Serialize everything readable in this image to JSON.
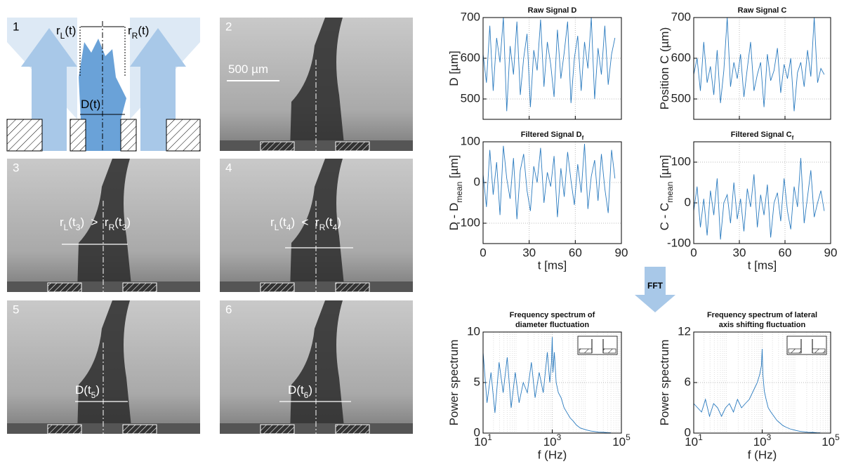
{
  "panels": [
    {
      "number": "1",
      "labels": [
        {
          "parts": [
            {
              "text": "r"
            },
            {
              "sub": "L"
            },
            {
              "text": "(t)"
            }
          ]
        },
        {
          "parts": [
            {
              "text": "r"
            },
            {
              "sub": "R"
            },
            {
              "text": "(t)"
            }
          ]
        },
        {
          "parts": [
            {
              "text": "D(t)"
            }
          ]
        }
      ]
    },
    {
      "number": "2",
      "labels": [
        {
          "parts": [
            {
              "text": "500 µm"
            }
          ]
        }
      ]
    },
    {
      "number": "3",
      "labels": [
        {
          "parts": [
            {
              "text": "r"
            },
            {
              "sub": "L"
            },
            {
              "text": "(t"
            },
            {
              "sub": "3"
            },
            {
              "text": ")  >  r"
            },
            {
              "sub": "R"
            },
            {
              "text": "(t"
            },
            {
              "sub": "3"
            },
            {
              "text": ")"
            }
          ]
        }
      ]
    },
    {
      "number": "4",
      "labels": [
        {
          "parts": [
            {
              "text": "r"
            },
            {
              "sub": "L"
            },
            {
              "text": "(t"
            },
            {
              "sub": "4"
            },
            {
              "text": ")  <  r"
            },
            {
              "sub": "R"
            },
            {
              "text": "(t"
            },
            {
              "sub": "4"
            },
            {
              "text": ")"
            }
          ]
        }
      ]
    },
    {
      "number": "5",
      "labels": [
        {
          "parts": [
            {
              "text": "D(t"
            },
            {
              "sub": "5"
            },
            {
              "text": ")"
            }
          ]
        }
      ]
    },
    {
      "number": "6",
      "labels": [
        {
          "parts": [
            {
              "text": "D(t"
            },
            {
              "sub": "6"
            },
            {
              "text": ")"
            }
          ]
        }
      ]
    }
  ],
  "fft_label": "FFT",
  "chart_data": [
    {
      "type": "line",
      "title": [
        [
          {
            "text": "Raw Signal D"
          }
        ]
      ],
      "ylabel": [
        {
          "text": "D [µm]"
        }
      ],
      "color": "#2b7bbf",
      "x": [
        0,
        2.2,
        4.4,
        6.6,
        8.8,
        11,
        13.2,
        15.4,
        17.6,
        19.8,
        22,
        24.2,
        26.4,
        28.6,
        30.8,
        33,
        35.2,
        37.4,
        39.6,
        41.8,
        44,
        46.2,
        48.4,
        50.6,
        52.8,
        55,
        57.2,
        59.4,
        61.6,
        63.8,
        66,
        68.2,
        70.4,
        72.6,
        74.8,
        77,
        79.2,
        81.4,
        83.6,
        85.8
      ],
      "values": [
        610,
        540,
        680,
        520,
        650,
        590,
        700,
        470,
        630,
        560,
        690,
        510,
        600,
        660,
        480,
        620,
        570,
        695,
        530,
        640,
        585,
        505,
        670,
        550,
        615,
        690,
        490,
        600,
        655,
        520,
        640,
        575,
        700,
        500,
        625,
        560,
        680,
        535,
        610,
        650
      ],
      "xlim": [
        0,
        90
      ],
      "xticks": [
        0,
        30,
        60,
        90
      ],
      "show_xticklabels": false,
      "ylim": [
        450,
        700
      ],
      "yticks": [
        500,
        600,
        700
      ],
      "grid": true
    },
    {
      "type": "line",
      "title": [
        [
          {
            "text": "Raw Signal C"
          }
        ]
      ],
      "ylabel": [
        {
          "text": "Position C (µm)"
        }
      ],
      "color": "#2b7bbf",
      "x": [
        0,
        2.2,
        4.4,
        6.6,
        8.8,
        11,
        13.2,
        15.4,
        17.6,
        19.8,
        22,
        24.2,
        26.4,
        28.6,
        30.8,
        33,
        35.2,
        37.4,
        39.6,
        41.8,
        44,
        46.2,
        48.4,
        50.6,
        52.8,
        55,
        57.2,
        59.4,
        61.6,
        63.8,
        66,
        68.2,
        70.4,
        72.6,
        74.8,
        77,
        79.2,
        81.4,
        83.6,
        85.8
      ],
      "values": [
        560,
        600,
        520,
        640,
        540,
        580,
        510,
        620,
        490,
        570,
        700,
        530,
        590,
        550,
        610,
        505,
        575,
        640,
        520,
        560,
        590,
        480,
        610,
        545,
        570,
        625,
        515,
        585,
        550,
        600,
        470,
        565,
        590,
        530,
        620,
        555,
        700,
        540,
        575,
        560
      ],
      "xlim": [
        0,
        90
      ],
      "xticks": [
        0,
        30,
        60,
        90
      ],
      "show_xticklabels": false,
      "ylim": [
        450,
        700
      ],
      "yticks": [
        500,
        600,
        700
      ],
      "grid": true
    },
    {
      "type": "line",
      "title": [
        [
          {
            "text": "Filtered Signal D"
          },
          {
            "sub": "f"
          }
        ]
      ],
      "ylabel": [
        {
          "text": "D - D"
        },
        {
          "sub": "mean"
        },
        {
          "text": " [µm]"
        }
      ],
      "xlabel": "t [ms]",
      "color": "#2b7bbf",
      "x": [
        0,
        2.2,
        4.4,
        6.6,
        8.8,
        11,
        13.2,
        15.4,
        17.6,
        19.8,
        22,
        24.2,
        26.4,
        28.6,
        30.8,
        33,
        35.2,
        37.4,
        39.6,
        41.8,
        44,
        46.2,
        48.4,
        50.6,
        52.8,
        55,
        57.2,
        59.4,
        61.6,
        63.8,
        66,
        68.2,
        70.4,
        72.6,
        74.8,
        77,
        79.2,
        81.4,
        83.6,
        85.8
      ],
      "values": [
        20,
        -60,
        80,
        -30,
        50,
        -80,
        90,
        10,
        -40,
        60,
        -90,
        30,
        70,
        -20,
        -70,
        40,
        0,
        85,
        -50,
        25,
        -10,
        65,
        -85,
        35,
        -35,
        75,
        5,
        -55,
        45,
        -25,
        95,
        -65,
        15,
        55,
        -45,
        70,
        -15,
        -75,
        80,
        10
      ],
      "xlim": [
        0,
        90
      ],
      "xticks": [
        0,
        30,
        60,
        90
      ],
      "show_xticklabels": true,
      "ylim": [
        -150,
        100
      ],
      "yticks": [
        -100,
        0,
        100
      ],
      "grid": true
    },
    {
      "type": "line",
      "title": [
        [
          {
            "text": "Filtered Signal C"
          },
          {
            "sub": "f"
          }
        ]
      ],
      "ylabel": [
        {
          "text": "C - C"
        },
        {
          "sub": "mean"
        },
        {
          "text": " [µm]"
        }
      ],
      "xlabel": "t [ms]",
      "color": "#2b7bbf",
      "x": [
        0,
        2.2,
        4.4,
        6.6,
        8.8,
        11,
        13.2,
        15.4,
        17.6,
        19.8,
        22,
        24.2,
        26.4,
        28.6,
        30.8,
        33,
        35.2,
        37.4,
        39.6,
        41.8,
        44,
        46.2,
        48.4,
        50.6,
        52.8,
        55,
        57.2,
        59.4,
        61.6,
        63.8,
        66,
        68.2,
        70.4,
        72.6,
        74.8,
        77,
        79.2,
        81.4,
        83.6,
        85.8
      ],
      "values": [
        -20,
        40,
        -60,
        10,
        -80,
        30,
        -30,
        60,
        -90,
        0,
        20,
        -50,
        50,
        -40,
        10,
        -70,
        35,
        -10,
        70,
        -60,
        20,
        -30,
        45,
        -85,
        0,
        25,
        -45,
        60,
        -20,
        -65,
        40,
        -10,
        110,
        -50,
        15,
        80,
        -35,
        0,
        30,
        -20
      ],
      "xlim": [
        0,
        90
      ],
      "xticks": [
        0,
        30,
        60,
        90
      ],
      "show_xticklabels": true,
      "ylim": [
        -100,
        150
      ],
      "yticks": [
        -100,
        0,
        100
      ],
      "grid": true
    },
    {
      "type": "line",
      "title": [
        [
          {
            "text": "Frequency spectrum of"
          }
        ],
        [
          {
            "text": "diameter fluctuation"
          }
        ]
      ],
      "ylabel": [
        {
          "text": "Power spectrum"
        }
      ],
      "xlabel": "f (Hz)",
      "color": "#2b7bbf",
      "xscale": "log",
      "x": [
        10,
        13,
        17,
        22,
        29,
        38,
        50,
        65,
        85,
        110,
        145,
        190,
        250,
        320,
        420,
        550,
        720,
        850,
        950,
        1000,
        1050,
        1150,
        1300,
        1500,
        1800,
        2200,
        2700,
        3300,
        4000,
        5000,
        6500,
        8000,
        10000,
        13000,
        17000,
        22000,
        30000,
        40000,
        50000
      ],
      "values": [
        8,
        3,
        6,
        2,
        7,
        4,
        7.5,
        2.5,
        6,
        3,
        5,
        4,
        7,
        3.5,
        6,
        4,
        8,
        5,
        7,
        9.5,
        6,
        8,
        5,
        4,
        3.5,
        2.5,
        2,
        1.5,
        1.2,
        0.8,
        0.5,
        0.4,
        0.3,
        0.2,
        0.15,
        0.1,
        0.08,
        0.05,
        0.03
      ],
      "xlim": [
        10,
        100000
      ],
      "xticks": [
        {
          "value": 10,
          "label": "10",
          "sup": "1"
        },
        {
          "value": 1000,
          "label": "10",
          "sup": "3"
        },
        {
          "value": 100000,
          "label": "10",
          "sup": "5"
        }
      ],
      "show_xticklabels": true,
      "ylim": [
        0,
        10
      ],
      "yticks": [
        0,
        5,
        10
      ],
      "grid": true
    },
    {
      "type": "line",
      "title": [
        [
          {
            "text": "Frequency spectrum of lateral"
          }
        ],
        [
          {
            "text": "axis shifting fluctuation"
          }
        ]
      ],
      "ylabel": [
        {
          "text": "Power spectrum"
        }
      ],
      "xlabel": "f (Hz)",
      "color": "#2b7bbf",
      "xscale": "log",
      "x": [
        10,
        13,
        17,
        22,
        29,
        38,
        50,
        65,
        85,
        110,
        145,
        190,
        250,
        320,
        420,
        550,
        720,
        850,
        950,
        1000,
        1050,
        1150,
        1300,
        1500,
        1800,
        2200,
        2700,
        3300,
        4000,
        5000,
        6500,
        8000,
        10000,
        13000,
        17000,
        22000,
        30000,
        40000,
        50000
      ],
      "values": [
        3.5,
        3,
        2.5,
        4,
        2,
        3.5,
        3,
        2,
        3,
        3.5,
        2.5,
        4,
        3,
        3.5,
        4,
        5,
        6,
        7,
        8,
        10,
        7,
        5,
        4,
        3,
        2.5,
        2,
        1.5,
        1.2,
        0.9,
        0.7,
        0.5,
        0.4,
        0.3,
        0.2,
        0.15,
        0.1,
        0.08,
        0.05,
        0.03
      ],
      "xlim": [
        10,
        100000
      ],
      "xticks": [
        {
          "value": 10,
          "label": "10",
          "sup": "1"
        },
        {
          "value": 1000,
          "label": "10",
          "sup": "3"
        },
        {
          "value": 100000,
          "label": "10",
          "sup": "5"
        }
      ],
      "show_xticklabels": true,
      "ylim": [
        0,
        12
      ],
      "yticks": [
        0,
        6,
        12
      ],
      "grid": true
    }
  ]
}
